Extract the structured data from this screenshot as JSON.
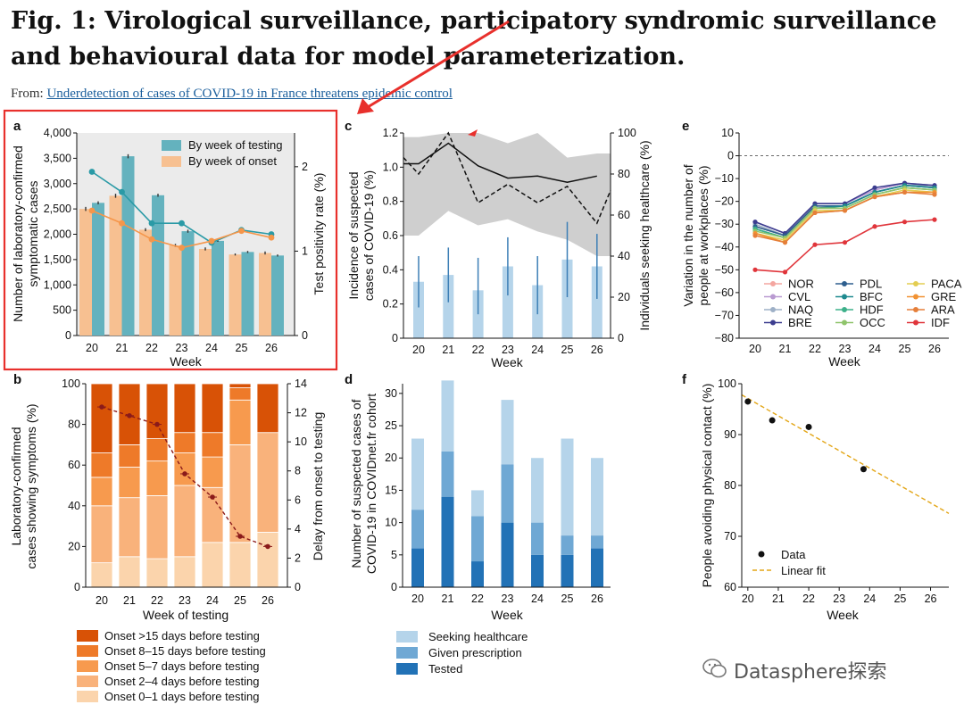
{
  "figure": {
    "title": "Fig. 1: Virological surveillance, participatory syndromic surveillance and behavioural data for model parameterization.",
    "from_prefix": "From: ",
    "from_link": "Underdetection of cases of COVID-19 in France threatens epidemic control"
  },
  "watermark": "Datasphere探索",
  "colors": {
    "teal": "#64b2be",
    "teal_line": "#2a9aa6",
    "orange": "#f7c091",
    "orange_line": "#f5964a",
    "highlight": "#e8302c",
    "grey_band": "#cfcfcf",
    "light_blue": "#b5d4ea",
    "mid_blue": "#6fa8d4",
    "dark_blue": "#2272b6",
    "dark_red": "#8b1a1a"
  },
  "chart_data": [
    {
      "panel": "a",
      "type": "bar",
      "categories": [
        "20",
        "21",
        "22",
        "23",
        "24",
        "25",
        "26"
      ],
      "series": [
        {
          "name": "By week of onset",
          "values": [
            2500,
            2760,
            2090,
            1780,
            1710,
            1600,
            1630
          ],
          "errors": [
            40,
            40,
            30,
            30,
            30,
            20,
            30
          ]
        },
        {
          "name": "By week of testing",
          "values": [
            2620,
            3540,
            2770,
            2060,
            1870,
            1650,
            1580
          ],
          "errors": [
            30,
            40,
            30,
            30,
            20,
            20,
            20
          ]
        }
      ],
      "line_series": [
        {
          "name": "Test positivity rate (testing)",
          "values": [
            1.94,
            1.7,
            1.33,
            1.33,
            1.1,
            1.25,
            1.2
          ]
        },
        {
          "name": "Test positivity rate (onset)",
          "values": [
            1.48,
            1.33,
            1.14,
            1.04,
            1.12,
            1.24,
            1.16
          ]
        }
      ],
      "xlabel": "Week",
      "ylabel": "Number of laboratory-confirmed symptomatic cases",
      "y2label": "Test positivity rate (%)",
      "ylim": [
        0,
        4000
      ],
      "yticks": [
        "0",
        "500",
        "1,000",
        "1,500",
        "2,000",
        "2,500",
        "3,000",
        "3,500",
        "4,000"
      ],
      "y2lim": [
        0,
        2.4
      ],
      "y2ticks": [
        "0",
        "1",
        "2"
      ]
    },
    {
      "panel": "b",
      "type": "bar",
      "categories": [
        "20",
        "21",
        "22",
        "23",
        "24",
        "25",
        "26"
      ],
      "series": [
        {
          "name": "Onset 0–1 days before testing",
          "values": [
            12,
            15,
            14,
            15,
            22,
            22,
            27
          ]
        },
        {
          "name": "Onset 2–4 days before testing",
          "values": [
            28,
            29,
            31,
            35,
            27,
            48,
            49
          ]
        },
        {
          "name": "Onset 5–7 days before testing",
          "values": [
            14,
            15,
            17,
            16,
            15,
            22,
            0
          ]
        },
        {
          "name": "Onset 8–15 days before testing",
          "values": [
            12,
            11,
            11,
            10,
            12,
            6,
            0
          ]
        },
        {
          "name": "Onset >15 days before testing",
          "values": [
            34,
            30,
            27,
            24,
            24,
            2,
            24
          ]
        }
      ],
      "line_series": [
        {
          "name": "Delay from onset to testing",
          "values": [
            12.4,
            11.8,
            11.2,
            7.8,
            6.2,
            3.5,
            2.8
          ]
        }
      ],
      "xlabel": "Week of testing",
      "ylabel": "Laboratory-confirmed cases showing symptoms (%)",
      "y2label": "Delay from onset to testing",
      "ylim": [
        0,
        100
      ],
      "yticks": [
        "0",
        "20",
        "40",
        "60",
        "80",
        "100"
      ],
      "y2lim": [
        0,
        14
      ],
      "y2ticks": [
        "0",
        "2",
        "4",
        "6",
        "8",
        "10",
        "12",
        "14"
      ]
    },
    {
      "panel": "c",
      "type": "bar",
      "categories": [
        "20",
        "21",
        "22",
        "23",
        "24",
        "25",
        "26"
      ],
      "series": [
        {
          "name": "Incidence of suspected cases",
          "values": [
            0.33,
            0.37,
            0.28,
            0.42,
            0.31,
            0.46,
            0.42
          ],
          "errors": [
            0.15,
            0.16,
            0.19,
            0.17,
            0.17,
            0.22,
            0.19
          ]
        }
      ],
      "line_series": [
        {
          "name": "Individuals seeking healthcare",
          "values": [
            85,
            95,
            84,
            78,
            79,
            76,
            79
          ]
        },
        {
          "name": "Individuals seeking healthcare (dashed)",
          "values": [
            80,
            102,
            66,
            75,
            66,
            74,
            56
          ]
        }
      ],
      "band_upper": [
        98,
        100,
        100,
        95,
        100,
        88,
        90
      ],
      "band_lower": [
        50,
        62,
        55,
        58,
        52,
        48,
        40
      ],
      "xlabel": "Week",
      "ylabel": "Incidence of suspected cases of COVID-19 (%)",
      "y2label": "Individuals seeking healthcare (%)",
      "ylim": [
        0,
        1.2
      ],
      "yticks": [
        "0",
        "0.2",
        "0.4",
        "0.6",
        "0.8",
        "1.0",
        "1.2"
      ],
      "y2lim": [
        0,
        100
      ],
      "y2ticks": [
        "0",
        "20",
        "40",
        "60",
        "80",
        "100"
      ]
    },
    {
      "panel": "d",
      "type": "bar",
      "categories": [
        "20",
        "21",
        "22",
        "23",
        "24",
        "25",
        "26"
      ],
      "series": [
        {
          "name": "Tested",
          "values": [
            6,
            14,
            4,
            10,
            5,
            5,
            6
          ]
        },
        {
          "name": "Given prescription",
          "values": [
            6,
            7,
            7,
            9,
            5,
            3,
            2
          ]
        },
        {
          "name": "Seeking healthcare",
          "values": [
            11,
            11,
            4,
            10,
            10,
            15,
            12
          ]
        }
      ],
      "xlabel": "Week",
      "ylabel": "Number of suspected cases of COVID-19 in COVIDnet.fr cohort",
      "ylim": [
        0,
        30
      ],
      "yticks": [
        "0",
        "5",
        "10",
        "15",
        "20",
        "25",
        "30"
      ]
    },
    {
      "panel": "e",
      "type": "line",
      "x": [
        "20",
        "21",
        "22",
        "23",
        "24",
        "25",
        "26"
      ],
      "series": [
        {
          "name": "NOR",
          "color": "#f4a6a0",
          "values": [
            -31,
            -35,
            -22,
            -22,
            -16,
            -13,
            -14
          ]
        },
        {
          "name": "CVL",
          "color": "#b99ad1",
          "values": [
            -29,
            -34,
            -21,
            -21,
            -15,
            -12,
            -13
          ]
        },
        {
          "name": "NAQ",
          "color": "#9eb0c7",
          "values": [
            -30,
            -35,
            -22,
            -22,
            -16,
            -13,
            -13
          ]
        },
        {
          "name": "BRE",
          "color": "#3c3d8f",
          "values": [
            -29,
            -34,
            -21,
            -21,
            -14,
            -12,
            -13
          ]
        },
        {
          "name": "PDL",
          "color": "#2e5f8e",
          "values": [
            -31,
            -35,
            -22,
            -22,
            -16,
            -13,
            -14
          ]
        },
        {
          "name": "BFC",
          "color": "#1f8a8f",
          "values": [
            -32,
            -36,
            -23,
            -22,
            -16,
            -13,
            -14
          ]
        },
        {
          "name": "HDF",
          "color": "#3db08a",
          "values": [
            -32,
            -36,
            -23,
            -23,
            -17,
            -14,
            -15
          ]
        },
        {
          "name": "OCC",
          "color": "#8fc46b",
          "values": [
            -33,
            -36,
            -23,
            -23,
            -17,
            -14,
            -15
          ]
        },
        {
          "name": "PACA",
          "color": "#e3cd52",
          "values": [
            -34,
            -37,
            -24,
            -24,
            -18,
            -15,
            -16
          ]
        },
        {
          "name": "GRE",
          "color": "#f19233",
          "values": [
            -34,
            -38,
            -25,
            -24,
            -18,
            -16,
            -16
          ]
        },
        {
          "name": "ARA",
          "color": "#e57f3a",
          "values": [
            -35,
            -38,
            -25,
            -24,
            -18,
            -16,
            -17
          ]
        },
        {
          "name": "IDF",
          "color": "#e0353b",
          "values": [
            -50,
            -51,
            -39,
            -38,
            -31,
            -29,
            -28
          ]
        }
      ],
      "xlabel": "Week",
      "ylabel": "Variation in the number of people at workplaces (%)",
      "ylim": [
        -80,
        10
      ],
      "yticks": [
        "10",
        "0",
        "−10",
        "−20",
        "−30",
        "−40",
        "−50",
        "−60",
        "−70",
        "−80"
      ]
    },
    {
      "panel": "f",
      "type": "scatter",
      "points_x": [
        20,
        20.8,
        22,
        23.8
      ],
      "points_y": [
        96.5,
        92.8,
        91.5,
        83.2
      ],
      "fit_x": [
        19.8,
        26.6
      ],
      "fit_y": [
        97.8,
        74.5
      ],
      "legend": [
        "Data",
        "Linear fit"
      ],
      "xlabel": "Week",
      "ylabel": "People avoiding physical contact (%)",
      "xlim": [
        19.8,
        26.6
      ],
      "xticks": [
        "20",
        "21",
        "22",
        "23",
        "24",
        "25",
        "26"
      ],
      "ylim": [
        60,
        100
      ],
      "yticks": [
        "60",
        "70",
        "80",
        "90",
        "100"
      ]
    }
  ],
  "panel_letters": [
    "a",
    "b",
    "c",
    "d",
    "e",
    "f"
  ]
}
